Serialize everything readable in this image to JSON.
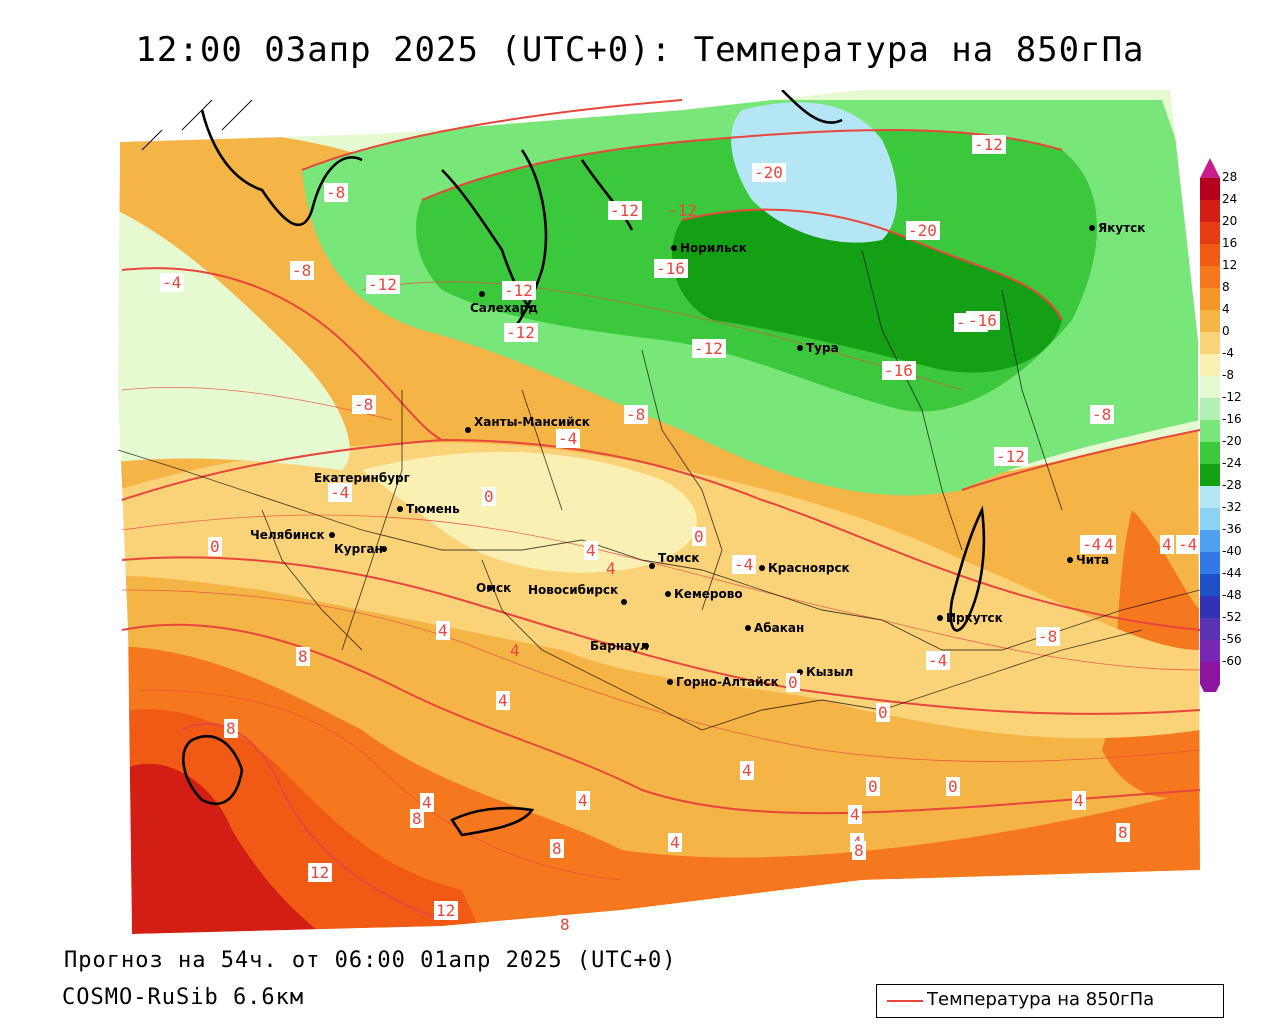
{
  "title": "12:00 03апр 2025 (UTC+0): Температура на 850гПа",
  "footer": {
    "forecast": "Прогноз на 54ч. от 06:00 01апр 2025 (UTC+0)",
    "model": "COSMO-RuSib 6.6км"
  },
  "legend": {
    "label": "Температура на 850гПа",
    "line_color": "#e8463c"
  },
  "colorbar": {
    "labels": [
      "28",
      "24",
      "20",
      "16",
      "12",
      "8",
      "4",
      "0",
      "-4",
      "-8",
      "-12",
      "-16",
      "-20",
      "-24",
      "-28",
      "-32",
      "-36",
      "-40",
      "-44",
      "-48",
      "-52",
      "-56",
      "-60"
    ],
    "colors": [
      "#b4001e",
      "#d21e14",
      "#e63c14",
      "#f05a14",
      "#f5781e",
      "#f59628",
      "#f5b446",
      "#fad278",
      "#faf0b4",
      "#e6fad2",
      "#b4f0b4",
      "#78e678",
      "#3cc83c",
      "#14a014",
      "#b4e6f5",
      "#8cd2f5",
      "#50a0f0",
      "#3278e6",
      "#1e50c8",
      "#3232b4",
      "#5a32b4",
      "#7828b4",
      "#8c14a0"
    ]
  },
  "contour_labels": [
    "-20",
    "-20",
    "-16",
    "-16",
    "-16",
    "-16",
    "-12",
    "-12",
    "-12",
    "-12",
    "-12",
    "-12",
    "-12",
    "-8",
    "-8",
    "-8",
    "-8",
    "-8",
    "-8",
    "-8",
    "-4",
    "-4",
    "-4",
    "-4",
    "-4",
    "-4",
    "-4",
    "0",
    "0",
    "0",
    "0",
    "0",
    "0",
    "0",
    "4",
    "4",
    "4",
    "4",
    "4",
    "4",
    "4",
    "4",
    "4",
    "4",
    "4",
    "4",
    "8",
    "8",
    "8",
    "8",
    "8",
    "8",
    "8",
    "12",
    "12",
    "12"
  ],
  "cities": [
    "Норильск",
    "Якутск",
    "Салехард",
    "Тура",
    "Ханты-Мансийск",
    "Екатеринбург",
    "Тюмень",
    "Челябинск",
    "Курган",
    "Омск",
    "Новосибирск",
    "Томск",
    "Кемерово",
    "Красноярск",
    "Барнаул",
    "Абакан",
    "Иркутск",
    "Чита",
    "Кызыл",
    "Горно-Алтайск"
  ],
  "hatch_labels": [
    "-12",
    "4",
    "4"
  ]
}
